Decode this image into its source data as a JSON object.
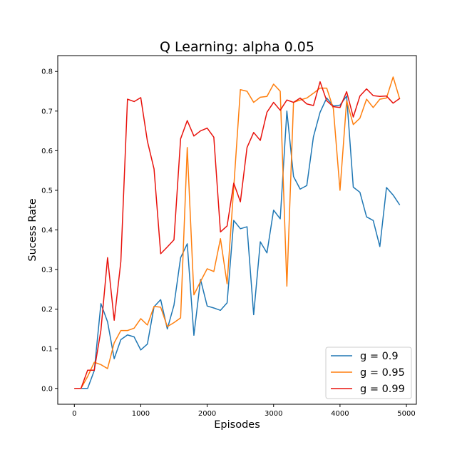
{
  "chart_data": {
    "type": "line",
    "title": "Q Learning: alpha 0.05",
    "xlabel": "Episodes",
    "ylabel": "Sucess Rate",
    "xlim": [
      -250,
      5150
    ],
    "ylim": [
      -0.04,
      0.84
    ],
    "xticks": [
      0,
      1000,
      2000,
      3000,
      4000,
      5000
    ],
    "xtick_labels": [
      "0",
      "1000",
      "2000",
      "3000",
      "4000",
      "5000"
    ],
    "yticks": [
      0.0,
      0.1,
      0.2,
      0.3,
      0.4,
      0.5,
      0.6,
      0.7,
      0.8
    ],
    "ytick_labels": [
      "0.0",
      "0.1",
      "0.2",
      "0.3",
      "0.4",
      "0.5",
      "0.6",
      "0.7",
      "0.8"
    ],
    "grid": false,
    "legend_position": "bottom-right",
    "x": [
      0,
      100,
      200,
      300,
      400,
      500,
      600,
      700,
      800,
      900,
      1000,
      1100,
      1200,
      1300,
      1400,
      1500,
      1600,
      1700,
      1800,
      1900,
      2000,
      2100,
      2200,
      2300,
      2400,
      2500,
      2600,
      2700,
      2800,
      2900,
      3000,
      3100,
      3200,
      3300,
      3400,
      3500,
      3600,
      3700,
      3800,
      3900,
      4000,
      4100,
      4200,
      4300,
      4400,
      4500,
      4600,
      4700,
      4800,
      4900
    ],
    "series": [
      {
        "name": "g = 0.9",
        "color": "#1f77b4",
        "values": [
          0.0,
          0.0,
          0.0,
          0.045,
          0.214,
          0.168,
          0.075,
          0.123,
          0.135,
          0.13,
          0.097,
          0.112,
          0.206,
          0.224,
          0.15,
          0.21,
          0.33,
          0.365,
          0.134,
          0.275,
          0.208,
          0.203,
          0.197,
          0.216,
          0.424,
          0.403,
          0.408,
          0.186,
          0.37,
          0.342,
          0.45,
          0.428,
          0.7,
          0.535,
          0.503,
          0.512,
          0.635,
          0.697,
          0.733,
          0.713,
          0.715,
          0.738,
          0.508,
          0.495,
          0.433,
          0.424,
          0.358,
          0.507,
          0.488,
          0.463
        ]
      },
      {
        "name": "g = 0.95",
        "color": "#ff7f0e",
        "values": [
          0.0,
          0.0,
          0.03,
          0.066,
          0.06,
          0.05,
          0.115,
          0.146,
          0.146,
          0.152,
          0.176,
          0.16,
          0.207,
          0.205,
          0.156,
          0.166,
          0.178,
          0.608,
          0.236,
          0.27,
          0.302,
          0.295,
          0.378,
          0.264,
          0.507,
          0.754,
          0.75,
          0.722,
          0.735,
          0.737,
          0.768,
          0.75,
          0.258,
          0.722,
          0.728,
          0.733,
          0.745,
          0.758,
          0.758,
          0.706,
          0.5,
          0.726,
          0.666,
          0.682,
          0.73,
          0.709,
          0.73,
          0.733,
          0.786,
          0.73
        ]
      },
      {
        "name": "g = 0.99",
        "color": "#e8120c",
        "values": [
          0.0,
          0.0,
          0.046,
          0.046,
          0.147,
          0.33,
          0.172,
          0.32,
          0.73,
          0.724,
          0.734,
          0.624,
          0.554,
          0.34,
          0.357,
          0.375,
          0.63,
          0.676,
          0.637,
          0.65,
          0.657,
          0.634,
          0.395,
          0.41,
          0.518,
          0.471,
          0.608,
          0.646,
          0.626,
          0.697,
          0.722,
          0.702,
          0.728,
          0.722,
          0.733,
          0.718,
          0.714,
          0.774,
          0.726,
          0.711,
          0.709,
          0.749,
          0.685,
          0.738,
          0.756,
          0.739,
          0.737,
          0.738,
          0.72,
          0.732
        ]
      }
    ]
  }
}
